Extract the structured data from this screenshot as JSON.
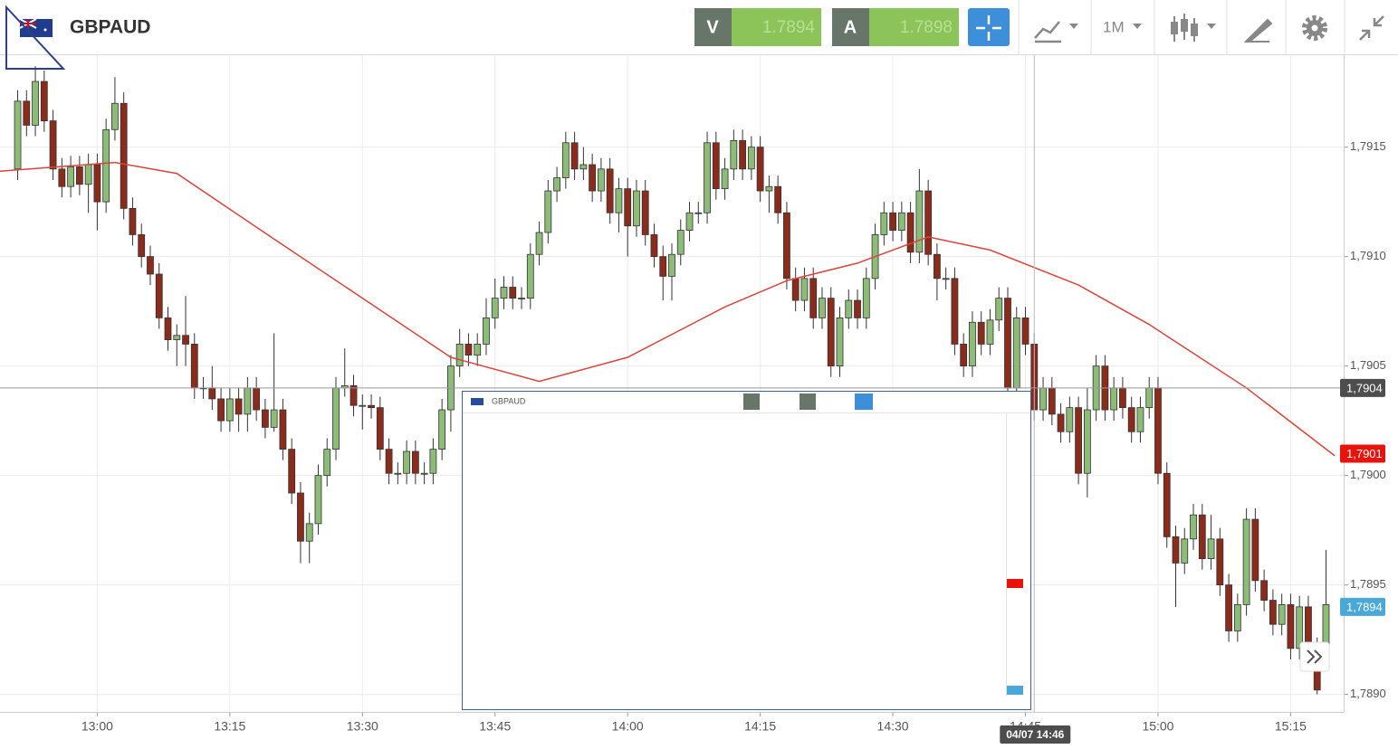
{
  "header": {
    "symbol": "GBPAUD",
    "sell_label": "V",
    "sell_price": 1.7894,
    "buy_label": "A",
    "buy_price": 1.7898,
    "timeframe": "1M"
  },
  "inset": {
    "title": "GBPAUD"
  },
  "chart_data": {
    "type": "candlestick",
    "grid": true,
    "up_color": "#8dbb78",
    "down_color": "#8b2b1b",
    "wick_color": "#333333",
    "xlim": [
      "12:49",
      "15:21"
    ],
    "xticks": [
      "13:00",
      "13:15",
      "13:30",
      "13:45",
      "14:00",
      "14:15",
      "14:30",
      "14:45",
      "15:00",
      "15:15"
    ],
    "ylim": [
      1.78892,
      1.79192
    ],
    "yticks": [
      {
        "value": 1.789,
        "label": "1,7890"
      },
      {
        "value": 1.7895,
        "label": "1,7895"
      },
      {
        "value": 1.79,
        "label": "1,7900"
      },
      {
        "value": 1.7905,
        "label": "1,7905"
      },
      {
        "value": 1.791,
        "label": "1,7910"
      },
      {
        "value": 1.7915,
        "label": "1,7915"
      }
    ],
    "x": [
      "12:51",
      "12:52",
      "12:53",
      "12:54",
      "12:55",
      "12:56",
      "12:57",
      "12:58",
      "12:59",
      "13:00",
      "13:01",
      "13:02",
      "13:03",
      "13:04",
      "13:05",
      "13:06",
      "13:07",
      "13:08",
      "13:09",
      "13:10",
      "13:11",
      "13:12",
      "13:13",
      "13:14",
      "13:15",
      "13:16",
      "13:17",
      "13:18",
      "13:19",
      "13:20",
      "13:21",
      "13:22",
      "13:23",
      "13:24",
      "13:25",
      "13:26",
      "13:27",
      "13:28",
      "13:29",
      "13:30",
      "13:31",
      "13:32",
      "13:33",
      "13:34",
      "13:35",
      "13:36",
      "13:37",
      "13:38",
      "13:39",
      "13:40",
      "13:41",
      "13:42",
      "13:43",
      "13:44",
      "13:45",
      "13:46",
      "13:47",
      "13:48",
      "13:49",
      "13:50",
      "13:51",
      "13:52",
      "13:53",
      "13:54",
      "13:55",
      "13:56",
      "13:57",
      "13:58",
      "13:59",
      "14:00",
      "14:01",
      "14:02",
      "14:03",
      "14:04",
      "14:05",
      "14:06",
      "14:07",
      "14:08",
      "14:09",
      "14:10",
      "14:11",
      "14:12",
      "14:13",
      "14:14",
      "14:15",
      "14:16",
      "14:17",
      "14:18",
      "14:19",
      "14:20",
      "14:21",
      "14:22",
      "14:23",
      "14:24",
      "14:25",
      "14:26",
      "14:27",
      "14:28",
      "14:29",
      "14:30",
      "14:31",
      "14:32",
      "14:33",
      "14:34",
      "14:35",
      "14:36",
      "14:37",
      "14:38",
      "14:39",
      "14:40",
      "14:41",
      "14:42",
      "14:43",
      "14:44",
      "14:45",
      "14:46",
      "14:47",
      "14:48",
      "14:49",
      "14:50",
      "14:51",
      "14:52",
      "14:53",
      "14:54",
      "14:55",
      "14:56",
      "14:57",
      "14:58",
      "14:59",
      "15:00",
      "15:01",
      "15:02",
      "15:03",
      "15:04",
      "15:05",
      "15:06",
      "15:07",
      "15:08",
      "15:09",
      "15:10",
      "15:11",
      "15:12",
      "15:13",
      "15:14",
      "15:15",
      "15:16",
      "15:17",
      "15:18",
      "15:19"
    ],
    "ohlc": [
      [
        1.7914,
        1.79176,
        1.79135,
        1.79171
      ],
      [
        1.79171,
        1.79176,
        1.79155,
        1.7916
      ],
      [
        1.7916,
        1.79187,
        1.79155,
        1.7918
      ],
      [
        1.7918,
        1.79185,
        1.79157,
        1.79162
      ],
      [
        1.79162,
        1.79167,
        1.79135,
        1.7914
      ],
      [
        1.7914,
        1.79145,
        1.79127,
        1.79132
      ],
      [
        1.79132,
        1.79146,
        1.79127,
        1.79141
      ],
      [
        1.79141,
        1.79146,
        1.79128,
        1.79133
      ],
      [
        1.79133,
        1.79147,
        1.7912,
        1.79142
      ],
      [
        1.79142,
        1.79147,
        1.79112,
        1.79125
      ],
      [
        1.79125,
        1.79163,
        1.7912,
        1.79158
      ],
      [
        1.79158,
        1.79182,
        1.79153,
        1.7917
      ],
      [
        1.7917,
        1.79175,
        1.79117,
        1.79122
      ],
      [
        1.79122,
        1.79127,
        1.79105,
        1.7911
      ],
      [
        1.7911,
        1.79115,
        1.79095,
        1.791
      ],
      [
        1.791,
        1.79105,
        1.79087,
        1.79092
      ],
      [
        1.79092,
        1.79097,
        1.79067,
        1.79072
      ],
      [
        1.79072,
        1.79077,
        1.79057,
        1.79062
      ],
      [
        1.79062,
        1.79069,
        1.7905,
        1.79064
      ],
      [
        1.79064,
        1.79082,
        1.7905,
        1.7906
      ],
      [
        1.7906,
        1.79065,
        1.79035,
        1.7904
      ],
      [
        1.7904,
        1.79045,
        1.79035,
        1.7904
      ],
      [
        1.7904,
        1.7905,
        1.7903,
        1.79035
      ],
      [
        1.79035,
        1.7904,
        1.7902,
        1.79025
      ],
      [
        1.79025,
        1.7904,
        1.7902,
        1.79035
      ],
      [
        1.79035,
        1.7904,
        1.7902,
        1.79028
      ],
      [
        1.79028,
        1.79045,
        1.7902,
        1.7904
      ],
      [
        1.7904,
        1.79045,
        1.79025,
        1.7903
      ],
      [
        1.7903,
        1.79035,
        1.79017,
        1.79022
      ],
      [
        1.79022,
        1.79065,
        1.7902,
        1.7903
      ],
      [
        1.7903,
        1.79035,
        1.79007,
        1.79012
      ],
      [
        1.79012,
        1.79017,
        1.78987,
        1.78992
      ],
      [
        1.78992,
        1.78997,
        1.7896,
        1.7897
      ],
      [
        1.7897,
        1.78983,
        1.7896,
        1.78978
      ],
      [
        1.78978,
        1.79005,
        1.78973,
        1.79
      ],
      [
        1.79,
        1.79017,
        1.78995,
        1.79012
      ],
      [
        1.79012,
        1.79045,
        1.79007,
        1.7904
      ],
      [
        1.7904,
        1.79058,
        1.79036,
        1.79041
      ],
      [
        1.79041,
        1.79046,
        1.79027,
        1.79032
      ],
      [
        1.79032,
        1.79037,
        1.79021,
        1.79032
      ],
      [
        1.79032,
        1.79037,
        1.79026,
        1.79031
      ],
      [
        1.79031,
        1.79036,
        1.79007,
        1.79012
      ],
      [
        1.79012,
        1.79017,
        1.78996,
        1.79001
      ],
      [
        1.79001,
        1.79006,
        1.78996,
        1.79001
      ],
      [
        1.79001,
        1.79016,
        1.78996,
        1.79011
      ],
      [
        1.79011,
        1.79016,
        1.78996,
        1.79001
      ],
      [
        1.79001,
        1.79006,
        1.78996,
        1.79001
      ],
      [
        1.79001,
        1.79017,
        1.78996,
        1.79012
      ],
      [
        1.79012,
        1.79035,
        1.79007,
        1.7903
      ],
      [
        1.7903,
        1.79055,
        1.7902,
        1.7905
      ],
      [
        1.7905,
        1.79067,
        1.79045,
        1.7906
      ],
      [
        1.7906,
        1.79065,
        1.7905,
        1.79055
      ],
      [
        1.79055,
        1.79065,
        1.7905,
        1.7906
      ],
      [
        1.7906,
        1.79081,
        1.79055,
        1.79072
      ],
      [
        1.79072,
        1.7909,
        1.79067,
        1.79081
      ],
      [
        1.79081,
        1.79091,
        1.79076,
        1.79086
      ],
      [
        1.79086,
        1.79091,
        1.79076,
        1.79081
      ],
      [
        1.79081,
        1.79086,
        1.79076,
        1.79081
      ],
      [
        1.79081,
        1.79106,
        1.79076,
        1.79101
      ],
      [
        1.79101,
        1.79116,
        1.79096,
        1.79111
      ],
      [
        1.79111,
        1.79135,
        1.79106,
        1.7913
      ],
      [
        1.7913,
        1.79141,
        1.79125,
        1.79136
      ],
      [
        1.79136,
        1.79157,
        1.79131,
        1.79152
      ],
      [
        1.79152,
        1.79157,
        1.79135,
        1.7914
      ],
      [
        1.7914,
        1.7915,
        1.79135,
        1.79142
      ],
      [
        1.79142,
        1.79147,
        1.79125,
        1.7913
      ],
      [
        1.7913,
        1.79145,
        1.79125,
        1.7914
      ],
      [
        1.7914,
        1.79145,
        1.79115,
        1.7912
      ],
      [
        1.7912,
        1.79136,
        1.79111,
        1.79131
      ],
      [
        1.79131,
        1.79136,
        1.791,
        1.79114
      ],
      [
        1.79114,
        1.79135,
        1.79109,
        1.7913
      ],
      [
        1.7913,
        1.79135,
        1.79105,
        1.7911
      ],
      [
        1.7911,
        1.79115,
        1.79095,
        1.791
      ],
      [
        1.791,
        1.79105,
        1.7908,
        1.79091
      ],
      [
        1.79091,
        1.79106,
        1.7908,
        1.79101
      ],
      [
        1.79101,
        1.79117,
        1.79096,
        1.79112
      ],
      [
        1.79112,
        1.79125,
        1.79107,
        1.7912
      ],
      [
        1.7912,
        1.79125,
        1.79115,
        1.7912
      ],
      [
        1.7912,
        1.79157,
        1.79115,
        1.79152
      ],
      [
        1.79152,
        1.79157,
        1.79126,
        1.79131
      ],
      [
        1.79131,
        1.79145,
        1.79126,
        1.7914
      ],
      [
        1.7914,
        1.79158,
        1.79135,
        1.79153
      ],
      [
        1.79153,
        1.79158,
        1.79135,
        1.7914
      ],
      [
        1.7914,
        1.79155,
        1.79135,
        1.7915
      ],
      [
        1.7915,
        1.79155,
        1.79125,
        1.7913
      ],
      [
        1.7913,
        1.79137,
        1.7912,
        1.79132
      ],
      [
        1.79132,
        1.79137,
        1.79115,
        1.7912
      ],
      [
        1.7912,
        1.79125,
        1.79085,
        1.7909
      ],
      [
        1.7909,
        1.79095,
        1.79075,
        1.7908
      ],
      [
        1.7908,
        1.79095,
        1.79075,
        1.7909
      ],
      [
        1.7909,
        1.79095,
        1.79067,
        1.79072
      ],
      [
        1.79072,
        1.79086,
        1.79067,
        1.79081
      ],
      [
        1.79081,
        1.79086,
        1.79045,
        1.7905
      ],
      [
        1.7905,
        1.79077,
        1.79045,
        1.79072
      ],
      [
        1.79072,
        1.79085,
        1.79067,
        1.7908
      ],
      [
        1.7908,
        1.79085,
        1.79067,
        1.79072
      ],
      [
        1.79072,
        1.79095,
        1.79067,
        1.7909
      ],
      [
        1.7909,
        1.79115,
        1.79085,
        1.7911
      ],
      [
        1.7911,
        1.79125,
        1.79105,
        1.7912
      ],
      [
        1.7912,
        1.79125,
        1.79107,
        1.79112
      ],
      [
        1.79112,
        1.79125,
        1.79107,
        1.7912
      ],
      [
        1.7912,
        1.79125,
        1.79097,
        1.79102
      ],
      [
        1.79102,
        1.7914,
        1.79097,
        1.7913
      ],
      [
        1.7913,
        1.79135,
        1.79096,
        1.79101
      ],
      [
        1.79101,
        1.79106,
        1.7908,
        1.7909
      ],
      [
        1.7909,
        1.79095,
        1.79085,
        1.7909
      ],
      [
        1.7909,
        1.79095,
        1.79055,
        1.7906
      ],
      [
        1.7906,
        1.79065,
        1.79045,
        1.7905
      ],
      [
        1.7905,
        1.79075,
        1.79045,
        1.7907
      ],
      [
        1.7907,
        1.79075,
        1.79055,
        1.7906
      ],
      [
        1.7906,
        1.79076,
        1.79055,
        1.79071
      ],
      [
        1.79071,
        1.79086,
        1.79066,
        1.79081
      ],
      [
        1.79081,
        1.79086,
        1.79035,
        1.7904
      ],
      [
        1.7904,
        1.79077,
        1.79035,
        1.79072
      ],
      [
        1.79072,
        1.79077,
        1.79055,
        1.7906
      ],
      [
        1.7906,
        1.79065,
        1.79025,
        1.7903
      ],
      [
        1.7903,
        1.79045,
        1.79025,
        1.7904
      ],
      [
        1.7904,
        1.79045,
        1.79023,
        1.79028
      ],
      [
        1.79028,
        1.79033,
        1.79015,
        1.7902
      ],
      [
        1.7902,
        1.79036,
        1.79015,
        1.79031
      ],
      [
        1.79031,
        1.79036,
        1.78996,
        1.79001
      ],
      [
        1.79001,
        1.7904,
        1.7899,
        1.7903
      ],
      [
        1.7903,
        1.79055,
        1.79025,
        1.7905
      ],
      [
        1.7905,
        1.79055,
        1.79025,
        1.7903
      ],
      [
        1.7903,
        1.79045,
        1.79025,
        1.7904
      ],
      [
        1.7904,
        1.79045,
        1.79026,
        1.79031
      ],
      [
        1.79031,
        1.79036,
        1.79015,
        1.7902
      ],
      [
        1.7902,
        1.79036,
        1.79015,
        1.79031
      ],
      [
        1.79031,
        1.79045,
        1.79026,
        1.7904
      ],
      [
        1.7904,
        1.79045,
        1.78996,
        1.79001
      ],
      [
        1.79001,
        1.79006,
        1.78967,
        1.78972
      ],
      [
        1.78972,
        1.78977,
        1.7894,
        1.7896
      ],
      [
        1.7896,
        1.78976,
        1.78955,
        1.78971
      ],
      [
        1.78971,
        1.78987,
        1.78966,
        1.78982
      ],
      [
        1.78982,
        1.78987,
        1.78957,
        1.78962
      ],
      [
        1.78962,
        1.78982,
        1.78957,
        1.78971
      ],
      [
        1.78971,
        1.78976,
        1.78945,
        1.7895
      ],
      [
        1.7895,
        1.78955,
        1.78924,
        1.78929
      ],
      [
        1.78929,
        1.78946,
        1.78924,
        1.78941
      ],
      [
        1.78941,
        1.78985,
        1.78936,
        1.7898
      ],
      [
        1.7898,
        1.78985,
        1.78947,
        1.78952
      ],
      [
        1.78952,
        1.78957,
        1.78938,
        1.78943
      ],
      [
        1.78943,
        1.78948,
        1.78927,
        1.78932
      ],
      [
        1.78932,
        1.78946,
        1.78927,
        1.78941
      ],
      [
        1.78941,
        1.78946,
        1.78916,
        1.78921
      ],
      [
        1.78921,
        1.78945,
        1.78916,
        1.7894
      ],
      [
        1.7894,
        1.78945,
        1.78916,
        1.78921
      ],
      [
        1.78921,
        1.78926,
        1.789,
        1.78902
      ],
      [
        1.78921,
        1.78966,
        1.78916,
        1.78941
      ]
    ],
    "line": {
      "color": "#d9453b",
      "x": [
        "12:49",
        "13:02",
        "13:09",
        "13:20",
        "13:30",
        "13:40",
        "13:50",
        "14:00",
        "14:11",
        "14:18",
        "14:26",
        "14:34",
        "14:41",
        "14:51",
        "14:59",
        "15:10",
        "15:20"
      ],
      "values": [
        1.79139,
        1.79143,
        1.79138,
        1.79108,
        1.79081,
        1.79054,
        1.79043,
        1.79054,
        1.79077,
        1.79089,
        1.79097,
        1.79109,
        1.79103,
        1.79087,
        1.79069,
        1.7904,
        1.79009
      ]
    },
    "markers": [
      {
        "value": 1.7904,
        "label": "1,7904",
        "color": "#4d4d4d"
      },
      {
        "value": 1.7901,
        "label": "1,7901",
        "color": "#e8140c"
      },
      {
        "value": 1.7894,
        "label": "1,7894",
        "color": "#4aa8d8"
      }
    ],
    "crosshair": {
      "label": "04/07 14:46"
    }
  }
}
